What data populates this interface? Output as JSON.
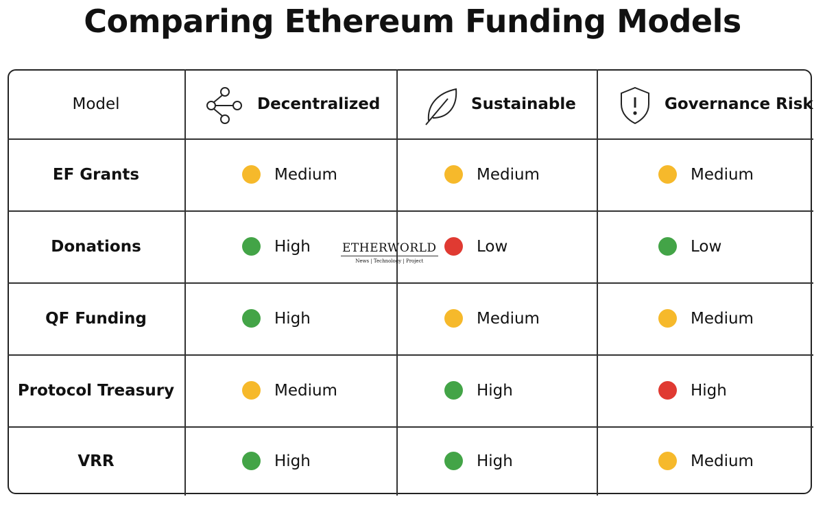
{
  "header": {
    "title": "Comparing Ethereum Funding Models"
  },
  "table": {
    "columns": [
      "Model",
      "Decentralized",
      "Sustainable",
      "Governance Risk"
    ],
    "rows": [
      {
        "model": "EF Grants",
        "cells": [
          {
            "label": "Medium",
            "color": "#f6b92b"
          },
          {
            "label": "Medium",
            "color": "#f6b92b"
          },
          {
            "label": "Medium",
            "color": "#f6b92b"
          }
        ]
      },
      {
        "model": "Donations",
        "cells": [
          {
            "label": "High",
            "color": "#43a447"
          },
          {
            "label": "Low",
            "color": "#e03a32"
          },
          {
            "label": "Low",
            "color": "#43a447"
          }
        ]
      },
      {
        "model": "QF Funding",
        "cells": [
          {
            "label": "High",
            "color": "#43a447"
          },
          {
            "label": "Medium",
            "color": "#f6b92b"
          },
          {
            "label": "Medium",
            "color": "#f6b92b"
          }
        ]
      },
      {
        "model": "Protocol Treasury",
        "cells": [
          {
            "label": "Medium",
            "color": "#f6b92b"
          },
          {
            "label": "High",
            "color": "#43a447"
          },
          {
            "label": "High",
            "color": "#e03a32"
          }
        ]
      },
      {
        "model": "VRR",
        "cells": [
          {
            "label": "High",
            "color": "#43a447"
          },
          {
            "label": "High",
            "color": "#43a447"
          },
          {
            "label": "Medium",
            "color": "#f6b92b"
          }
        ]
      }
    ]
  },
  "watermark": {
    "brand": "ETHERWORLD",
    "tagline": "News | Technology | Project"
  }
}
